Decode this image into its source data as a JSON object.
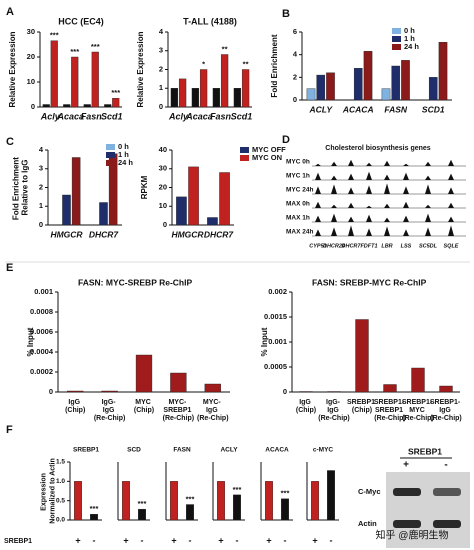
{
  "panel_labels": [
    "A",
    "B",
    "C",
    "D",
    "E",
    "F"
  ],
  "chart_data": [
    {
      "type": "bar",
      "title": "HCC (EC4)",
      "ylabel": "Relative Expression",
      "categories": [
        "Acly",
        "Acaca",
        "Fasn",
        "Scd1"
      ],
      "series": [
        {
          "color": "#111111",
          "values": [
            1,
            1,
            1,
            1
          ]
        },
        {
          "color": "#c0221f",
          "values": [
            26.5,
            20,
            22,
            3.5
          ],
          "annotations": [
            "***",
            "***",
            "***",
            "***"
          ]
        }
      ],
      "ylim": [
        0,
        30
      ],
      "yticks": [
        0,
        10,
        20,
        30
      ]
    },
    {
      "type": "bar",
      "title": "T-ALL (4188)",
      "ylabel": "Relative Expression",
      "categories": [
        "Acly",
        "Acaca",
        "Fasn",
        "Scd1"
      ],
      "series": [
        {
          "color": "#111111",
          "values": [
            1,
            1,
            1,
            1
          ]
        },
        {
          "color": "#c0221f",
          "values": [
            1.5,
            2,
            2.8,
            2
          ],
          "annotations": [
            null,
            "*",
            "**",
            "**"
          ]
        }
      ],
      "ylim": [
        0,
        4
      ],
      "yticks": [
        0,
        1,
        2,
        3,
        4
      ]
    },
    {
      "type": "bar",
      "ylabel": "Fold Enrichment",
      "categories": [
        "ACLY",
        "ACACA",
        "FASN",
        "SCD1"
      ],
      "series": [
        {
          "name": "0 h",
          "color": "#7fb2e0",
          "values": [
            1,
            0,
            1,
            0
          ]
        },
        {
          "name": "1 h",
          "color": "#1f2d6b",
          "values": [
            2.2,
            2.8,
            3,
            2
          ]
        },
        {
          "name": "24 h",
          "color": "#8b1a1a",
          "values": [
            2.4,
            4.3,
            3.5,
            5.1
          ]
        }
      ],
      "ylim": [
        0,
        6
      ],
      "yticks": [
        0,
        2,
        4,
        6
      ]
    },
    {
      "type": "bar",
      "ylabel": "Fold Enrichment Relative to IgG",
      "categories": [
        "HMGCR",
        "DHCR7"
      ],
      "series": [
        {
          "name": "0 h",
          "color": "#7fb2e0",
          "values": [
            0,
            0
          ]
        },
        {
          "name": "1 h",
          "color": "#1f2d6b",
          "values": [
            1.6,
            1.2
          ]
        },
        {
          "name": "24 h",
          "color": "#8b1a1a",
          "values": [
            3.6,
            3.8
          ]
        }
      ],
      "ylim": [
        0,
        4
      ],
      "yticks": [
        0,
        1,
        2,
        3,
        4
      ]
    },
    {
      "type": "bar",
      "ylabel": "RPKM",
      "categories": [
        "HMGCR",
        "DHCR7"
      ],
      "series": [
        {
          "name": "MYC OFF",
          "color": "#1f2d6b",
          "values": [
            15,
            4
          ]
        },
        {
          "name": "MYC ON",
          "color": "#c0221f",
          "values": [
            31,
            28
          ]
        }
      ],
      "ylim": [
        0,
        40
      ],
      "yticks": [
        0,
        10,
        20,
        30,
        40
      ]
    },
    {
      "type": "bar",
      "title": "FASN: MYC-SREBP Re-ChIP",
      "ylabel": "% Input",
      "categories": [
        "IgG (Chip)",
        "IgG- IgG (Re-Chip)",
        "MYC (Chip)",
        "MYC- SREBP1 (Re-Chip)",
        "MYC- IgG (Re-Chip)"
      ],
      "series": [
        {
          "color": "#a01c1c",
          "values": [
            1e-05,
            1e-05,
            0.00037,
            0.00019,
            8e-05
          ]
        }
      ],
      "ylim": [
        0,
        0.001
      ],
      "yticks": [
        0,
        0.0002,
        0.0004,
        0.0006,
        0.0008,
        0.001
      ]
    },
    {
      "type": "bar",
      "title": "FASN: SREBP-MYC Re-ChIP",
      "ylabel": "% Input",
      "categories": [
        "IgG (Chip)",
        "IgG- IgG (Re-Chip)",
        "SREBP1 (Chip)",
        "SREBP1- SREBP1 (Re-Chip)",
        "SREBP1- MYC (Re-Chip)",
        "SREBP1- IgG (Re-Chip)"
      ],
      "series": [
        {
          "color": "#a01c1c",
          "values": [
            1e-05,
            1e-05,
            0.00145,
            0.00015,
            0.00048,
            0.00012
          ]
        }
      ],
      "ylim": [
        0,
        0.002
      ],
      "yticks": [
        0,
        0.0005,
        0.001,
        0.0015,
        0.002
      ]
    },
    {
      "type": "bar",
      "title": "SREBP1",
      "ylabel": "Expression Normalized to Actin",
      "categories": [
        "+",
        "-"
      ],
      "series": [
        {
          "colors": [
            "#c0221f",
            "#111111"
          ],
          "values": [
            1,
            0.15
          ],
          "annotations": [
            null,
            "***"
          ]
        }
      ],
      "ylim": [
        0,
        1.5
      ],
      "yticks": [
        {
          "value": 0,
          "label": "0.0"
        },
        {
          "value": 0.5,
          "label": "0.5"
        },
        {
          "value": 1,
          "label": "1.0"
        },
        {
          "value": 1.5,
          "label": "1.5"
        }
      ]
    },
    {
      "type": "bar",
      "title": "SCD",
      "categories": [
        "+",
        "-"
      ],
      "series": [
        {
          "colors": [
            "#c0221f",
            "#111111"
          ],
          "values": [
            1,
            0.28
          ],
          "annotations": [
            null,
            "***"
          ]
        }
      ],
      "ylim": [
        0,
        1.5
      ]
    },
    {
      "type": "bar",
      "title": "FASN",
      "categories": [
        "+",
        "-"
      ],
      "series": [
        {
          "colors": [
            "#c0221f",
            "#111111"
          ],
          "values": [
            1,
            0.4
          ],
          "annotations": [
            null,
            "***"
          ]
        }
      ],
      "ylim": [
        0,
        1.5
      ]
    },
    {
      "type": "bar",
      "title": "ACLY",
      "categories": [
        "+",
        "-"
      ],
      "series": [
        {
          "colors": [
            "#c0221f",
            "#111111"
          ],
          "values": [
            1,
            0.65
          ],
          "annotations": [
            null,
            "***"
          ]
        }
      ],
      "ylim": [
        0,
        1.5
      ]
    },
    {
      "type": "bar",
      "title": "ACACA",
      "categories": [
        "+",
        "-"
      ],
      "series": [
        {
          "colors": [
            "#c0221f",
            "#111111"
          ],
          "values": [
            1,
            0.55
          ],
          "annotations": [
            null,
            "***"
          ]
        }
      ],
      "ylim": [
        0,
        1.5
      ]
    },
    {
      "type": "bar",
      "title": "c-MYC",
      "categories": [
        "+",
        "-"
      ],
      "series": [
        {
          "colors": [
            "#c0221f",
            "#111111"
          ],
          "values": [
            1,
            1.28
          ]
        }
      ],
      "ylim": [
        0,
        1.5
      ]
    }
  ],
  "tracks": {
    "title": "Cholesterol biosynthesis genes",
    "rows": [
      "MYC 0h",
      "MYC 1h",
      "MYC 24h",
      "MAX 0h",
      "MAX 1h",
      "MAX 24h"
    ],
    "genes": [
      "CYP51",
      "DHCR24",
      "DHCR7",
      "FDFT1",
      "LBR",
      "LSS",
      "SC5DL",
      "SQLE"
    ]
  },
  "blot": {
    "title": "SREBP1",
    "lanes": [
      "+",
      "-"
    ],
    "rows": [
      "C-Myc",
      "Actin"
    ]
  },
  "row_label": "SREBP1",
  "watermark": "知乎 @鹿明生物"
}
